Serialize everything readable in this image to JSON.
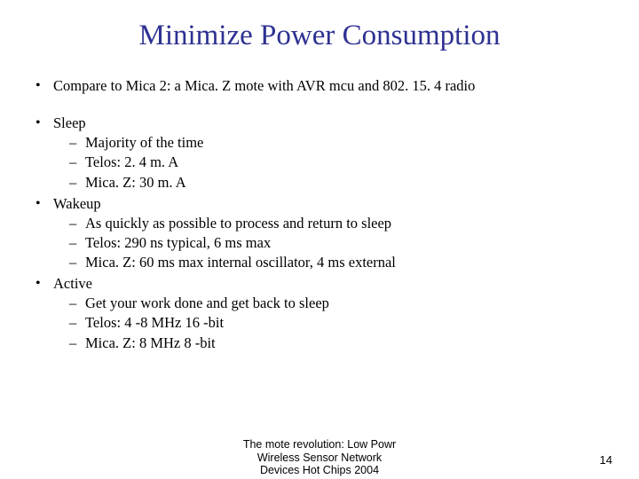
{
  "colors": {
    "title": "#2e3192",
    "body": "#000000",
    "background": "#ffffff"
  },
  "typography": {
    "title_family": "Times New Roman",
    "title_size_pt": 33,
    "body_family": "Times New Roman",
    "body_size_pt": 16.5,
    "footer_family": "Arial",
    "footer_size_pt": 12.5
  },
  "title": "Minimize Power Consumption",
  "bullets": [
    {
      "text": "Compare to Mica 2: a Mica. Z mote with AVR mcu and 802. 15. 4 radio",
      "gap_after": true
    },
    {
      "text": "Sleep",
      "sub": [
        "Majority of the time",
        "Telos: 2. 4 m. A",
        "Mica. Z: 30 m. A"
      ]
    },
    {
      "text": "Wakeup",
      "sub": [
        "As quickly as possible to process and return to sleep",
        "Telos: 290 ns typical, 6 ms max",
        "Mica. Z: 60 ms max internal oscillator, 4 ms external"
      ]
    },
    {
      "text": "Active",
      "sub": [
        "Get your work done and get back to sleep",
        "Telos: 4 -8 MHz 16 -bit",
        "Mica. Z: 8 MHz 8 -bit"
      ]
    }
  ],
  "footer": {
    "line1": "The mote revolution: Low Powr",
    "line2": "Wireless Sensor Network",
    "line3": "Devices  Hot Chips 2004"
  },
  "page_number": "14"
}
